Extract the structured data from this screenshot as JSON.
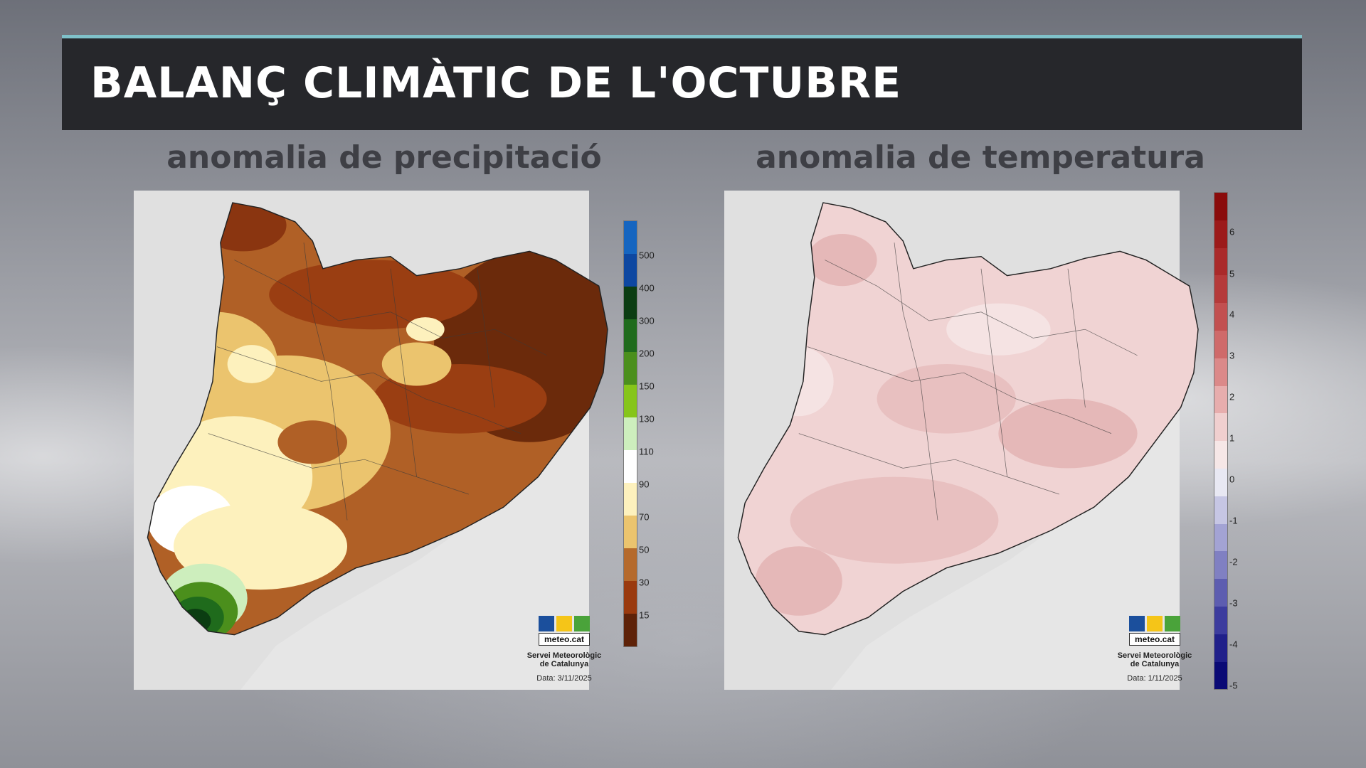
{
  "header": {
    "title": "BALANÇ CLIMÀTIC DE L'OCTUBRE"
  },
  "maps": [
    {
      "title": "anomalia de precipitació",
      "legend": {
        "labels": [
          "500",
          "400",
          "300",
          "200",
          "150",
          "130",
          "110",
          "90",
          "70",
          "50",
          "30",
          "15"
        ],
        "colors": [
          "#1565c0",
          "#0d47a1",
          "#0b3d12",
          "#1f6b1c",
          "#4b8f1c",
          "#86c51a",
          "#cdeebd",
          "#ffffff",
          "#fdf1bd",
          "#ebc46e",
          "#b56a2c",
          "#9a3a0e",
          "#5e2208"
        ]
      },
      "logo": {
        "name": "meteo.cat",
        "org": "Servei Meteorològic\nde Catalunya",
        "date": "Data: 3/11/2025"
      }
    },
    {
      "title": "anomalia de temperatura",
      "legend": {
        "labels": [
          "6",
          "5",
          "4",
          "3",
          "2",
          "1",
          "0",
          "-1",
          "-2",
          "-3",
          "-4",
          "-5"
        ],
        "colors": [
          "#8a0c0c",
          "#9c1a1a",
          "#aa2a2a",
          "#b53a3a",
          "#c25050",
          "#cf6a6a",
          "#db8989",
          "#e7adad",
          "#f0cfcf",
          "#f6e7e7",
          "#e8e8f3",
          "#c6c6e4",
          "#a3a3d4",
          "#8080c2",
          "#5d5db0",
          "#3c3c9e",
          "#20208a",
          "#0a0a75"
        ]
      },
      "logo": {
        "name": "meteo.cat",
        "org": "Servei Meteorològic\nde Catalunya",
        "date": "Data: 1/11/2025"
      }
    }
  ]
}
